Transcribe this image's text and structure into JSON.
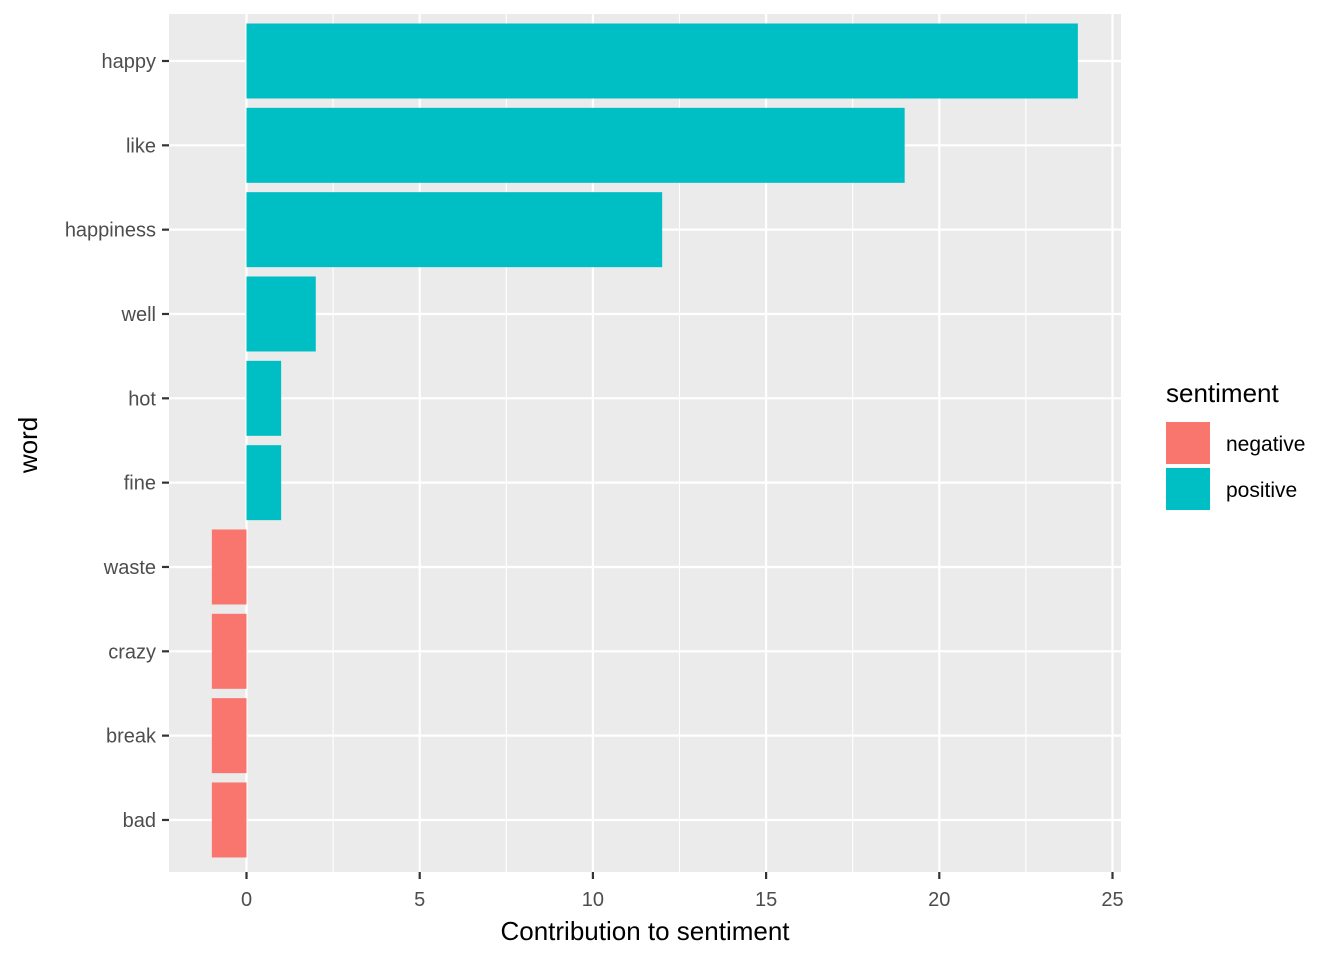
{
  "chart_data": {
    "type": "bar",
    "orientation": "horizontal",
    "xlabel": "Contribution to sentiment",
    "ylabel": "word",
    "xlim": [
      -2.2,
      25.2
    ],
    "x_ticks": [
      0,
      5,
      10,
      15,
      20,
      25
    ],
    "x_tick_labels": [
      "0",
      "5",
      "10",
      "15",
      "20",
      "25"
    ],
    "grid": true,
    "legend": {
      "title": "sentiment",
      "placement": "right",
      "entries": [
        {
          "label": "negative",
          "color": "#F8766D"
        },
        {
          "label": "positive",
          "color": "#00BFC4"
        }
      ]
    },
    "categories": [
      "happy",
      "like",
      "happiness",
      "well",
      "hot",
      "fine",
      "waste",
      "crazy",
      "break",
      "bad"
    ],
    "values": [
      24,
      19,
      12,
      2,
      1,
      1,
      -1,
      -1,
      -1,
      -1
    ],
    "sentiment": [
      "positive",
      "positive",
      "positive",
      "positive",
      "positive",
      "positive",
      "negative",
      "negative",
      "negative",
      "negative"
    ]
  },
  "colors": {
    "panel_background": "#EBEBEB",
    "grid": "#FFFFFF",
    "negative": "#F8766D",
    "positive": "#00BFC4"
  }
}
